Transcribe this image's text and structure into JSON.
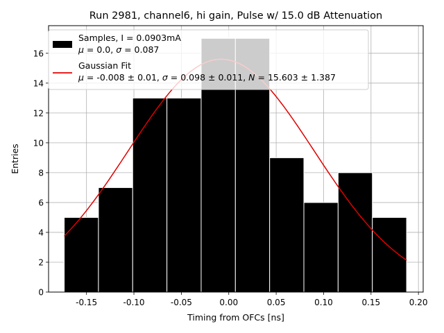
{
  "chart_data": {
    "type": "bar",
    "title": "Run 2981, channel6, hi gain, Pulse w/ 15.0 dB Attenuation",
    "xlabel": "Timing from OFCs [ns]",
    "ylabel": "Entries",
    "xlim": [
      -0.19,
      0.205
    ],
    "ylim": [
      0,
      17.85
    ],
    "grid": true,
    "x_ticks": [
      "-0.15",
      "-0.10",
      "-0.05",
      "0.00",
      "0.05",
      "0.10",
      "0.15",
      "0.20"
    ],
    "x_tick_values": [
      -0.15,
      -0.1,
      -0.05,
      0.0,
      0.05,
      0.1,
      0.15,
      0.2
    ],
    "y_ticks": [
      "0",
      "2",
      "4",
      "6",
      "8",
      "10",
      "12",
      "14",
      "16"
    ],
    "y_tick_values": [
      0,
      2,
      4,
      6,
      8,
      10,
      12,
      14,
      16
    ],
    "histogram": {
      "name": "Samples, I = 0.0903mA",
      "stats": "$\\mu$ = 0.0, $\\sigma$ = 0.087",
      "color": "#000000",
      "edge_color": "#ffffff",
      "bin_edges": [
        -0.1735,
        -0.1374,
        -0.1013,
        -0.0652,
        -0.0291,
        0.007,
        0.0431,
        0.0792,
        0.1153,
        0.1514,
        0.1875
      ],
      "values": [
        5,
        7,
        13,
        13,
        17,
        17,
        9,
        6,
        8,
        5
      ]
    },
    "fit": {
      "name": "Gaussian Fit",
      "stats": "$\\mu$ = -0.008 ± 0.01, $\\sigma$ = 0.098 ± 0.011, $N$ = 15.603 ± 1.387",
      "color": "#e00000",
      "mu": -0.008,
      "sigma": 0.098,
      "amplitude": 15.603,
      "x_range": [
        -0.1735,
        0.1875
      ]
    },
    "legend": {
      "placement": "upper-left",
      "entries": [
        {
          "line1": "Samples, I = 0.0903mA",
          "line2_parts": [
            [
              "μ",
              true
            ],
            [
              " = 0.0, ",
              false
            ],
            [
              "σ",
              true
            ],
            [
              " = 0.087",
              false
            ]
          ]
        },
        {
          "line1": "Gaussian Fit",
          "line2_parts": [
            [
              "μ",
              true
            ],
            [
              " = -0.008 ± 0.01, ",
              false
            ],
            [
              "σ",
              true
            ],
            [
              " = 0.098 ± 0.011, ",
              false
            ],
            [
              "N",
              true
            ],
            [
              " = 15.603 ± 1.387",
              false
            ]
          ]
        }
      ]
    }
  }
}
